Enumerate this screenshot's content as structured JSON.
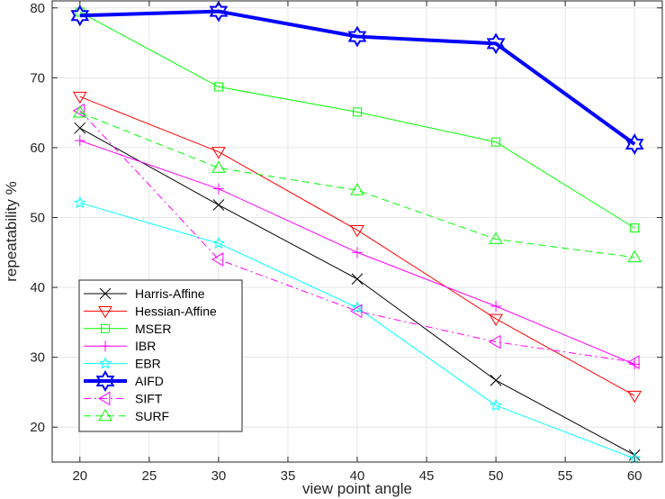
{
  "chart_data": {
    "type": "line",
    "title": "",
    "xlabel": "view point angle",
    "ylabel": "repeatability %",
    "x": [
      20,
      30,
      40,
      50,
      60
    ],
    "xlim": [
      18,
      62
    ],
    "ylim": [
      15,
      81
    ],
    "xticks": [
      20,
      25,
      30,
      35,
      40,
      45,
      50,
      55,
      60
    ],
    "yticks": [
      20,
      30,
      40,
      50,
      60,
      70,
      80
    ],
    "grid": true,
    "legend_position": "bottom-left",
    "series": [
      {
        "name": "Harris-Affine",
        "values": [
          62.8,
          51.8,
          41.2,
          26.7,
          16.0
        ],
        "color": "#000000",
        "marker": "x",
        "dash": "solid",
        "width": 1
      },
      {
        "name": "Hessian-Affine",
        "values": [
          67.3,
          59.4,
          48.2,
          35.5,
          24.5
        ],
        "color": "#ff0000",
        "marker": "triangle-down",
        "dash": "solid",
        "width": 1
      },
      {
        "name": "MSER",
        "values": [
          79.4,
          68.7,
          65.1,
          60.8,
          48.5
        ],
        "color": "#00ff00",
        "marker": "square",
        "dash": "solid",
        "width": 1
      },
      {
        "name": "IBR",
        "values": [
          61.0,
          54.1,
          45.0,
          37.3,
          29.0
        ],
        "color": "#ff00ff",
        "marker": "plus",
        "dash": "solid",
        "width": 1
      },
      {
        "name": "EBR",
        "values": [
          52.1,
          46.3,
          37.1,
          23.1,
          15.5
        ],
        "color": "#00ffff",
        "marker": "star",
        "dash": "solid",
        "width": 1
      },
      {
        "name": "AIFD",
        "values": [
          78.9,
          79.5,
          75.9,
          74.9,
          60.5
        ],
        "color": "#0000ff",
        "marker": "hexagram",
        "dash": "solid",
        "width": 4
      },
      {
        "name": "SIFT",
        "values": [
          65.3,
          44.0,
          36.6,
          32.2,
          29.3
        ],
        "color": "#ff00ff",
        "marker": "triangle-left",
        "dash": "dashdot",
        "width": 1
      },
      {
        "name": "SURF",
        "values": [
          65.0,
          57.1,
          53.9,
          46.9,
          44.3
        ],
        "color": "#00ff00",
        "marker": "triangle-up",
        "dash": "dashed",
        "width": 1
      }
    ]
  }
}
